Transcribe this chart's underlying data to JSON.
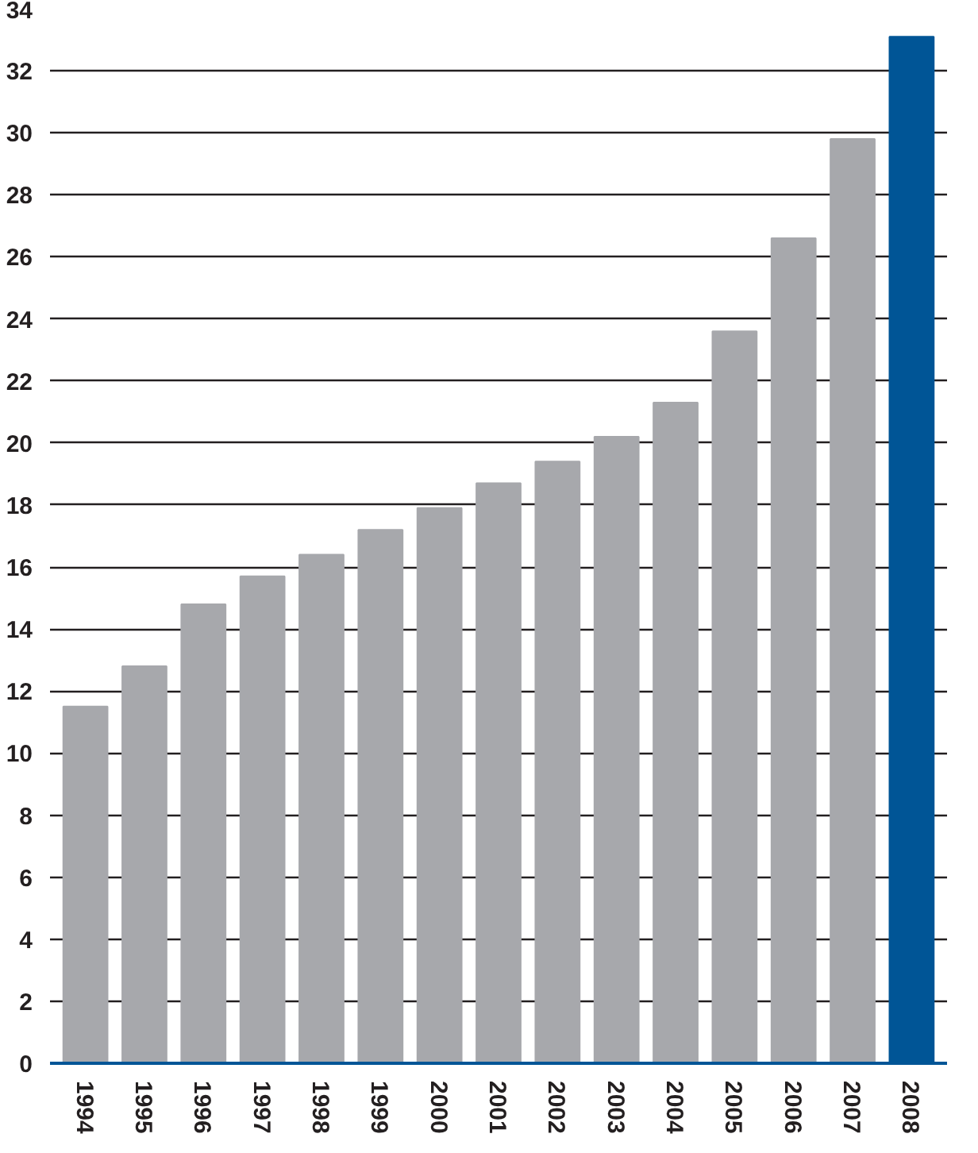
{
  "chart_data": {
    "type": "bar",
    "categories": [
      "1994",
      "1995",
      "1996",
      "1997",
      "1998",
      "1999",
      "2000",
      "2001",
      "2002",
      "2003",
      "2004",
      "2005",
      "2006",
      "2007",
      "2008"
    ],
    "values": [
      11.5,
      12.8,
      14.8,
      15.7,
      16.4,
      17.2,
      17.9,
      18.7,
      19.4,
      20.2,
      21.3,
      23.6,
      26.6,
      29.8,
      33.1
    ],
    "colors": [
      "#a7a8ac",
      "#a7a8ac",
      "#a7a8ac",
      "#a7a8ac",
      "#a7a8ac",
      "#a7a8ac",
      "#a7a8ac",
      "#a7a8ac",
      "#a7a8ac",
      "#a7a8ac",
      "#a7a8ac",
      "#a7a8ac",
      "#a7a8ac",
      "#a7a8ac",
      "#005596"
    ],
    "ylim": [
      0,
      34
    ],
    "yticks": [
      0,
      2,
      4,
      6,
      8,
      10,
      12,
      14,
      16,
      18,
      20,
      22,
      24,
      26,
      28,
      30,
      32,
      34
    ],
    "grid": "y"
  }
}
